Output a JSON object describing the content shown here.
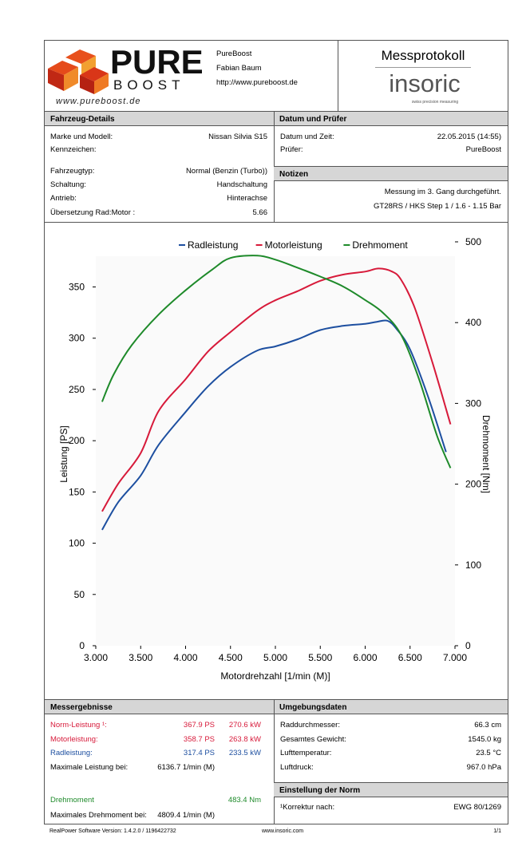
{
  "header": {
    "logo_text_1": "PURE",
    "logo_text_2": "BOOST",
    "logo_signature": "www.pureboost.de",
    "company": "PureBoost",
    "person": "Fabian Baum",
    "website": "http://www.pureboost.de",
    "protocol_title": "Messprotokoll",
    "brand": "insoric",
    "brand_tagline": "swiss precision measuring"
  },
  "vehicle": {
    "title": "Fahrzeug-Details",
    "rows_top": [
      {
        "label": "Marke und Modell:",
        "value": "Nissan Silvia S15"
      },
      {
        "label": "Kennzeichen:",
        "value": ""
      }
    ],
    "rows_bottom": [
      {
        "label": "Fahrzeugtyp:",
        "value": "Normal (Benzin (Turbo))"
      },
      {
        "label": "Schaltung:",
        "value": "Handschaltung"
      },
      {
        "label": "Antrieb:",
        "value": "Hinterachse"
      },
      {
        "label": "Übersetzung Rad:Motor :",
        "value": "5.66"
      }
    ]
  },
  "date": {
    "title": "Datum und Prüfer",
    "rows": [
      {
        "label": "Datum und Zeit:",
        "value": "22.05.2015 (14:55)"
      },
      {
        "label": "Prüfer:",
        "value": "PureBoost"
      }
    ]
  },
  "notes": {
    "title": "Notizen",
    "lines": [
      "Messung im 3. Gang durchgeführt.",
      "GT28RS / HKS Step 1 / 1.6 - 1.15 Bar"
    ]
  },
  "chart_data": {
    "type": "line",
    "xlabel": "Motordrehzahl [1/min (M)]",
    "ylabel": "Leistung [PS]",
    "y2label": "Drehmoment [Nm]",
    "xlim": [
      3000,
      7000
    ],
    "ylim": [
      0,
      380
    ],
    "y2lim": [
      0,
      500
    ],
    "x_ticks": [
      "3.000",
      "3.500",
      "4.000",
      "4.500",
      "5.000",
      "5.500",
      "6.000",
      "6.500",
      "7.000"
    ],
    "y_ticks": [
      "0",
      "50",
      "100",
      "150",
      "200",
      "250",
      "300",
      "350"
    ],
    "y2_ticks": [
      "0",
      "100",
      "200",
      "300",
      "400",
      "500"
    ],
    "legend_position": "top",
    "grid": false,
    "series": [
      {
        "name": "Radleistung",
        "color": "#1d4fa0",
        "axis": "left",
        "points": [
          [
            3070,
            113
          ],
          [
            3250,
            140
          ],
          [
            3500,
            166
          ],
          [
            3700,
            196
          ],
          [
            4000,
            228
          ],
          [
            4250,
            253
          ],
          [
            4500,
            272
          ],
          [
            4800,
            288
          ],
          [
            5000,
            292
          ],
          [
            5250,
            299
          ],
          [
            5500,
            308
          ],
          [
            5750,
            312
          ],
          [
            6000,
            314
          ],
          [
            6130,
            316
          ],
          [
            6250,
            317
          ],
          [
            6350,
            309
          ],
          [
            6500,
            289
          ],
          [
            6700,
            243
          ],
          [
            6900,
            189
          ]
        ]
      },
      {
        "name": "Motorleistung",
        "color": "#d71a3a",
        "axis": "left",
        "points": [
          [
            3070,
            131
          ],
          [
            3250,
            158
          ],
          [
            3500,
            188
          ],
          [
            3700,
            229
          ],
          [
            4000,
            260
          ],
          [
            4250,
            287
          ],
          [
            4500,
            306
          ],
          [
            4800,
            327
          ],
          [
            5000,
            337
          ],
          [
            5250,
            346
          ],
          [
            5500,
            356
          ],
          [
            5750,
            362
          ],
          [
            6000,
            365
          ],
          [
            6150,
            368
          ],
          [
            6300,
            365
          ],
          [
            6400,
            357
          ],
          [
            6550,
            330
          ],
          [
            6750,
            276
          ],
          [
            6950,
            216
          ]
        ]
      },
      {
        "name": "Drehmoment",
        "color": "#1e8a2a",
        "axis": "right",
        "points": [
          [
            3070,
            302
          ],
          [
            3200,
            336
          ],
          [
            3400,
            372
          ],
          [
            3700,
            410
          ],
          [
            4000,
            440
          ],
          [
            4300,
            466
          ],
          [
            4500,
            480
          ],
          [
            4800,
            483
          ],
          [
            5000,
            478
          ],
          [
            5200,
            470
          ],
          [
            5500,
            457
          ],
          [
            5750,
            445
          ],
          [
            6000,
            428
          ],
          [
            6200,
            412
          ],
          [
            6400,
            385
          ],
          [
            6600,
            330
          ],
          [
            6800,
            260
          ],
          [
            6950,
            220
          ]
        ]
      }
    ]
  },
  "results": {
    "title": "Messergebnisse",
    "rows": [
      {
        "label": "Norm-Leistung ¹:",
        "ps": "367.9 PS",
        "kw": "270.6 kW",
        "color": "#d71a3a"
      },
      {
        "label": "Motorleistung:",
        "ps": "358.7 PS",
        "kw": "263.8 kW",
        "color": "#d71a3a"
      },
      {
        "label": "Radleistung:",
        "ps": "317.4 PS",
        "kw": "233.5 kW",
        "color": "#1d4fa0"
      }
    ],
    "max_power_label": "Maximale Leistung bei:",
    "max_power_value": "6136.7 1/min (M)",
    "torque_label": "Drehmoment",
    "torque_value": "483.4 Nm",
    "max_torque_label": "Maximales Drehmoment bei:",
    "max_torque_value": "4809.4 1/min (M)"
  },
  "environment": {
    "title": "Umgebungsdaten",
    "rows": [
      {
        "label": "Raddurchmesser:",
        "value": "66.3 cm"
      },
      {
        "label": "Gesamtes Gewicht:",
        "value": "1545.0 kg"
      },
      {
        "label": "Lufttemperatur:",
        "value": "23.5 °C"
      },
      {
        "label": "Luftdruck:",
        "value": "967.0 hPa"
      }
    ]
  },
  "norm": {
    "title": "Einstellung der Norm",
    "label": "¹Korrektur nach:",
    "value": "EWG 80/1269"
  },
  "footer": {
    "version": "RealPower Software Version: 1.4.2.0 / 1196422732",
    "url": "www.insoric.com",
    "page": "1/1"
  }
}
